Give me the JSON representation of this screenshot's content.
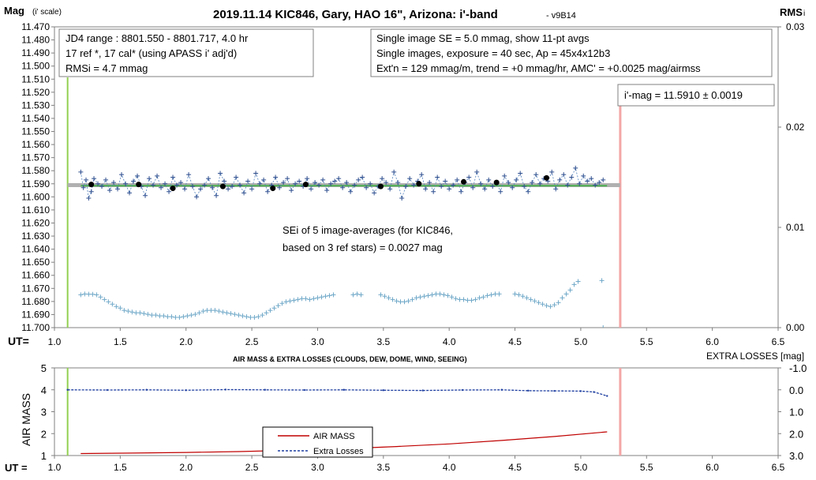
{
  "chart_data": [
    {
      "type": "scatter",
      "title": "2019.11.14 KIC846, Gary, HAO 16\", Arizona: i'-band",
      "version_tag": "- v9B14",
      "ylabel_main": "Mag",
      "ylabel_sub": "(i' scale)",
      "y2label_main": "RMS",
      "y2label_sub": "i",
      "xlabel": "UT=",
      "ylim": [
        11.47,
        11.7
      ],
      "y_reversed": true,
      "y2lim": [
        0.0,
        0.03
      ],
      "xlim": [
        1.0,
        6.5
      ],
      "grid": false,
      "x_ticks": [
        "1.0",
        "1.5",
        "2.0",
        "2.5",
        "3.0",
        "3.5",
        "4.0",
        "4.5",
        "5.0",
        "5.5",
        "6.0",
        "6.5"
      ],
      "y_ticks": [
        "11.470",
        "11.480",
        "11.490",
        "11.500",
        "11.510",
        "11.520",
        "11.530",
        "11.540",
        "11.550",
        "11.560",
        "11.570",
        "11.580",
        "11.590",
        "11.600",
        "11.610",
        "11.620",
        "11.630",
        "11.640",
        "11.650",
        "11.660",
        "11.670",
        "11.680",
        "11.690",
        "11.700"
      ],
      "y2_ticks": [
        "0.03",
        "0.02",
        "0.01",
        "0.00"
      ],
      "info_box_left": [
        "JD4 range : 8801.550 - 8801.717, 4.0  hr",
        "17 ref *, 17 cal* (using APASS i' adj'd)",
        "RMSi = 4.7 mmag"
      ],
      "info_box_right": [
        "Single image SE = 5.0 mmag, show 11-pt avgs",
        "Single images, exposure = 40 sec, Ap = 45x4x12b3",
        "Ext'n = 129 mmag/m, trend = +0 mmag/hr, AMC' = +0.0025 mag/airmss"
      ],
      "mag_box": "i'-mag = 11.5910 ± 0.0019",
      "sei_box": [
        "SEi of 5 image-averages (for KIC846,",
        "based on 3 ref stars) = 0.0027 mag"
      ],
      "vlines": {
        "start_x": 1.1,
        "end_x": 5.3,
        "start_color": "#92d050",
        "end_color": "#f4a6a6"
      },
      "mean_mag": 11.591,
      "fit_line": {
        "x": [
          1.2,
          5.2
        ],
        "y": [
          11.5915,
          11.5915
        ],
        "color": "#4caf50"
      },
      "series": [
        {
          "name": "",
          "kind": "single-images",
          "color": "#4f81bd",
          "x": [
            1.2,
            1.22,
            1.24,
            1.26,
            1.28,
            1.3,
            1.33,
            1.36,
            1.39,
            1.42,
            1.45,
            1.48,
            1.51,
            1.54,
            1.57,
            1.6,
            1.63,
            1.66,
            1.69,
            1.72,
            1.75,
            1.78,
            1.81,
            1.84,
            1.87,
            1.9,
            1.93,
            1.96,
            1.99,
            2.02,
            2.05,
            2.08,
            2.11,
            2.14,
            2.17,
            2.2,
            2.23,
            2.26,
            2.29,
            2.32,
            2.35,
            2.38,
            2.41,
            2.44,
            2.47,
            2.5,
            2.53,
            2.56,
            2.59,
            2.62,
            2.65,
            2.68,
            2.71,
            2.74,
            2.77,
            2.8,
            2.83,
            2.86,
            2.89,
            2.92,
            2.95,
            2.98,
            3.01,
            3.04,
            3.07,
            3.1,
            3.13,
            3.16,
            3.19,
            3.22,
            3.25,
            3.28,
            3.31,
            3.34,
            3.37,
            3.4,
            3.43,
            3.46,
            3.49,
            3.52,
            3.55,
            3.58,
            3.61,
            3.64,
            3.67,
            3.7,
            3.73,
            3.76,
            3.79,
            3.82,
            3.85,
            3.88,
            3.91,
            3.94,
            3.97,
            4.0,
            4.03,
            4.06,
            4.09,
            4.12,
            4.15,
            4.18,
            4.21,
            4.24,
            4.27,
            4.3,
            4.33,
            4.36,
            4.39,
            4.42,
            4.45,
            4.48,
            4.51,
            4.54,
            4.57,
            4.6,
            4.63,
            4.66,
            4.69,
            4.72,
            4.75,
            4.78,
            4.81,
            4.84,
            4.87,
            4.9,
            4.93,
            4.96,
            4.99,
            5.02,
            5.05,
            5.08,
            5.11,
            5.14,
            5.17
          ],
          "y": [
            11.581,
            11.593,
            11.587,
            11.601,
            11.596,
            11.586,
            11.59,
            11.592,
            11.587,
            11.595,
            11.589,
            11.594,
            11.583,
            11.59,
            11.597,
            11.588,
            11.584,
            11.592,
            11.599,
            11.586,
            11.591,
            11.584,
            11.593,
            11.59,
            11.596,
            11.585,
            11.591,
            11.589,
            11.594,
            11.583,
            11.592,
            11.6,
            11.594,
            11.591,
            11.586,
            11.593,
            11.599,
            11.582,
            11.588,
            11.594,
            11.592,
            11.585,
            11.591,
            11.597,
            11.588,
            11.594,
            11.582,
            11.59,
            11.587,
            11.596,
            11.591,
            11.585,
            11.593,
            11.589,
            11.586,
            11.595,
            11.59,
            11.588,
            11.592,
            11.586,
            11.594,
            11.589,
            11.591,
            11.587,
            11.595,
            11.59,
            11.588,
            11.586,
            11.593,
            11.589,
            11.596,
            11.591,
            11.587,
            11.585,
            11.593,
            11.59,
            11.597,
            11.592,
            11.586,
            11.589,
            11.594,
            11.581,
            11.589,
            11.601,
            11.592,
            11.586,
            11.591,
            11.588,
            11.583,
            11.594,
            11.589,
            11.596,
            11.585,
            11.592,
            11.588,
            11.594,
            11.591,
            11.587,
            11.596,
            11.589,
            11.585,
            11.593,
            11.581,
            11.59,
            11.594,
            11.587,
            11.592,
            11.589,
            11.596,
            11.584,
            11.589,
            11.593,
            11.587,
            11.582,
            11.592,
            11.596,
            11.589,
            11.583,
            11.59,
            11.586,
            11.588,
            11.581,
            11.594,
            11.587,
            11.583,
            11.591,
            11.585,
            11.578,
            11.59,
            11.584,
            11.588,
            11.586,
            11.591,
            11.589,
            11.587
          ]
        },
        {
          "name": "",
          "kind": "11-pt averages",
          "color": "#000000",
          "x": [
            1.28,
            1.64,
            1.9,
            2.28,
            2.66,
            2.91,
            3.48,
            3.77,
            4.11,
            4.36,
            4.74
          ],
          "y": [
            11.5905,
            11.5905,
            11.5935,
            11.592,
            11.5935,
            11.5905,
            11.592,
            11.59,
            11.5885,
            11.589,
            11.5855
          ]
        },
        {
          "name": "",
          "kind": "RMS",
          "color": "#6fa8c8",
          "x": [
            1.2,
            1.23,
            1.26,
            1.29,
            1.32,
            1.35,
            1.38,
            1.41,
            1.44,
            1.47,
            1.5,
            1.53,
            1.56,
            1.59,
            1.62,
            1.65,
            1.68,
            1.71,
            1.74,
            1.77,
            1.8,
            1.83,
            1.86,
            1.89,
            1.92,
            1.95,
            1.98,
            2.01,
            2.04,
            2.07,
            2.1,
            2.13,
            2.16,
            2.19,
            2.22,
            2.25,
            2.28,
            2.31,
            2.34,
            2.37,
            2.4,
            2.43,
            2.46,
            2.49,
            2.52,
            2.55,
            2.58,
            2.61,
            2.64,
            2.67,
            2.7,
            2.73,
            2.76,
            2.79,
            2.82,
            2.85,
            2.88,
            2.91,
            2.94,
            2.97,
            3.0,
            3.03,
            3.06,
            3.09,
            3.12,
            3.27,
            3.3,
            3.33,
            3.48,
            3.51,
            3.54,
            3.57,
            3.6,
            3.63,
            3.66,
            3.69,
            3.72,
            3.75,
            3.78,
            3.81,
            3.84,
            3.87,
            3.9,
            3.93,
            3.96,
            3.99,
            4.02,
            4.05,
            4.08,
            4.11,
            4.14,
            4.17,
            4.2,
            4.23,
            4.26,
            4.29,
            4.32,
            4.35,
            4.38,
            4.5,
            4.53,
            4.56,
            4.59,
            4.62,
            4.65,
            4.68,
            4.71,
            4.74,
            4.77,
            4.8,
            4.83,
            4.86,
            4.89,
            4.92,
            4.95,
            4.98,
            5.16
          ],
          "y": [
            0.00328,
            0.00336,
            0.00334,
            0.00333,
            0.00328,
            0.00305,
            0.00281,
            0.00258,
            0.00234,
            0.00211,
            0.00195,
            0.00172,
            0.00164,
            0.00156,
            0.00148,
            0.00148,
            0.00141,
            0.00133,
            0.00125,
            0.00125,
            0.00117,
            0.00117,
            0.00109,
            0.00109,
            0.00102,
            0.00102,
            0.00109,
            0.00117,
            0.00125,
            0.00133,
            0.00148,
            0.00164,
            0.00172,
            0.00172,
            0.00172,
            0.00164,
            0.00156,
            0.00148,
            0.00141,
            0.00133,
            0.00125,
            0.00117,
            0.00109,
            0.00102,
            0.00102,
            0.00109,
            0.00125,
            0.00148,
            0.00172,
            0.00195,
            0.00219,
            0.00242,
            0.00258,
            0.00266,
            0.00273,
            0.00281,
            0.00289,
            0.00289,
            0.00281,
            0.00289,
            0.00297,
            0.00305,
            0.00313,
            0.0032,
            0.00328,
            0.00328,
            0.00336,
            0.00328,
            0.00328,
            0.00313,
            0.00297,
            0.00281,
            0.00266,
            0.00258,
            0.00258,
            0.00266,
            0.00281,
            0.00297,
            0.00305,
            0.00313,
            0.0032,
            0.00328,
            0.00336,
            0.00336,
            0.00328,
            0.0032,
            0.00305,
            0.00289,
            0.00281,
            0.00281,
            0.00273,
            0.00273,
            0.00281,
            0.00297,
            0.00305,
            0.0032,
            0.00328,
            0.00336,
            0.00336,
            0.00336,
            0.00328,
            0.00313,
            0.00297,
            0.00281,
            0.00266,
            0.0025,
            0.00234,
            0.00219,
            0.00211,
            0.00227,
            0.0025,
            0.00297,
            0.00336,
            0.00375,
            0.0043,
            0.00461,
            0.00469
          ]
        }
      ]
    },
    {
      "type": "line",
      "title": "AIR MASS & EXTRA LOSSES (CLOUDS, DEW, DOME, WIND, SEEING)",
      "ylabel": "AIR MASS",
      "y2label": "EXTRA LOSSES [mag]",
      "xlabel": "UT =",
      "xlim": [
        1.0,
        6.5
      ],
      "ylim": [
        1,
        5
      ],
      "y2lim": [
        -1.0,
        3.0
      ],
      "y2_reversed": true,
      "x_ticks": [
        "1.0",
        "1.5",
        "2.0",
        "2.5",
        "3.0",
        "3.5",
        "4.0",
        "4.5",
        "5.0",
        "5.5",
        "6.0",
        "6.5"
      ],
      "y_ticks": [
        "5",
        "4",
        "3",
        "2",
        "1"
      ],
      "y2_ticks": [
        "-1.0",
        "0.0",
        "1.0",
        "2.0",
        "3.0"
      ],
      "legend_position": "center-left",
      "series": [
        {
          "name": "AIR MASS",
          "color": "#c00000",
          "x": [
            1.2,
            1.6,
            2.0,
            2.4,
            2.8,
            3.2,
            3.6,
            4.0,
            4.4,
            4.8,
            5.2
          ],
          "y": [
            1.09,
            1.11,
            1.14,
            1.18,
            1.24,
            1.31,
            1.41,
            1.53,
            1.69,
            1.87,
            2.08
          ]
        },
        {
          "name": "Extra Losses",
          "color": "#1f3fa0",
          "x": [
            1.1,
            1.4,
            1.7,
            2.0,
            2.3,
            2.6,
            2.9,
            3.2,
            3.5,
            3.8,
            4.1,
            4.4,
            4.6,
            4.8,
            5.0,
            5.1,
            5.2
          ],
          "y": [
            0.0,
            0.01,
            0.0,
            0.02,
            -0.01,
            0.0,
            0.01,
            0.0,
            0.02,
            0.03,
            0.01,
            0.0,
            0.04,
            0.05,
            0.06,
            0.1,
            0.28
          ]
        }
      ]
    }
  ]
}
